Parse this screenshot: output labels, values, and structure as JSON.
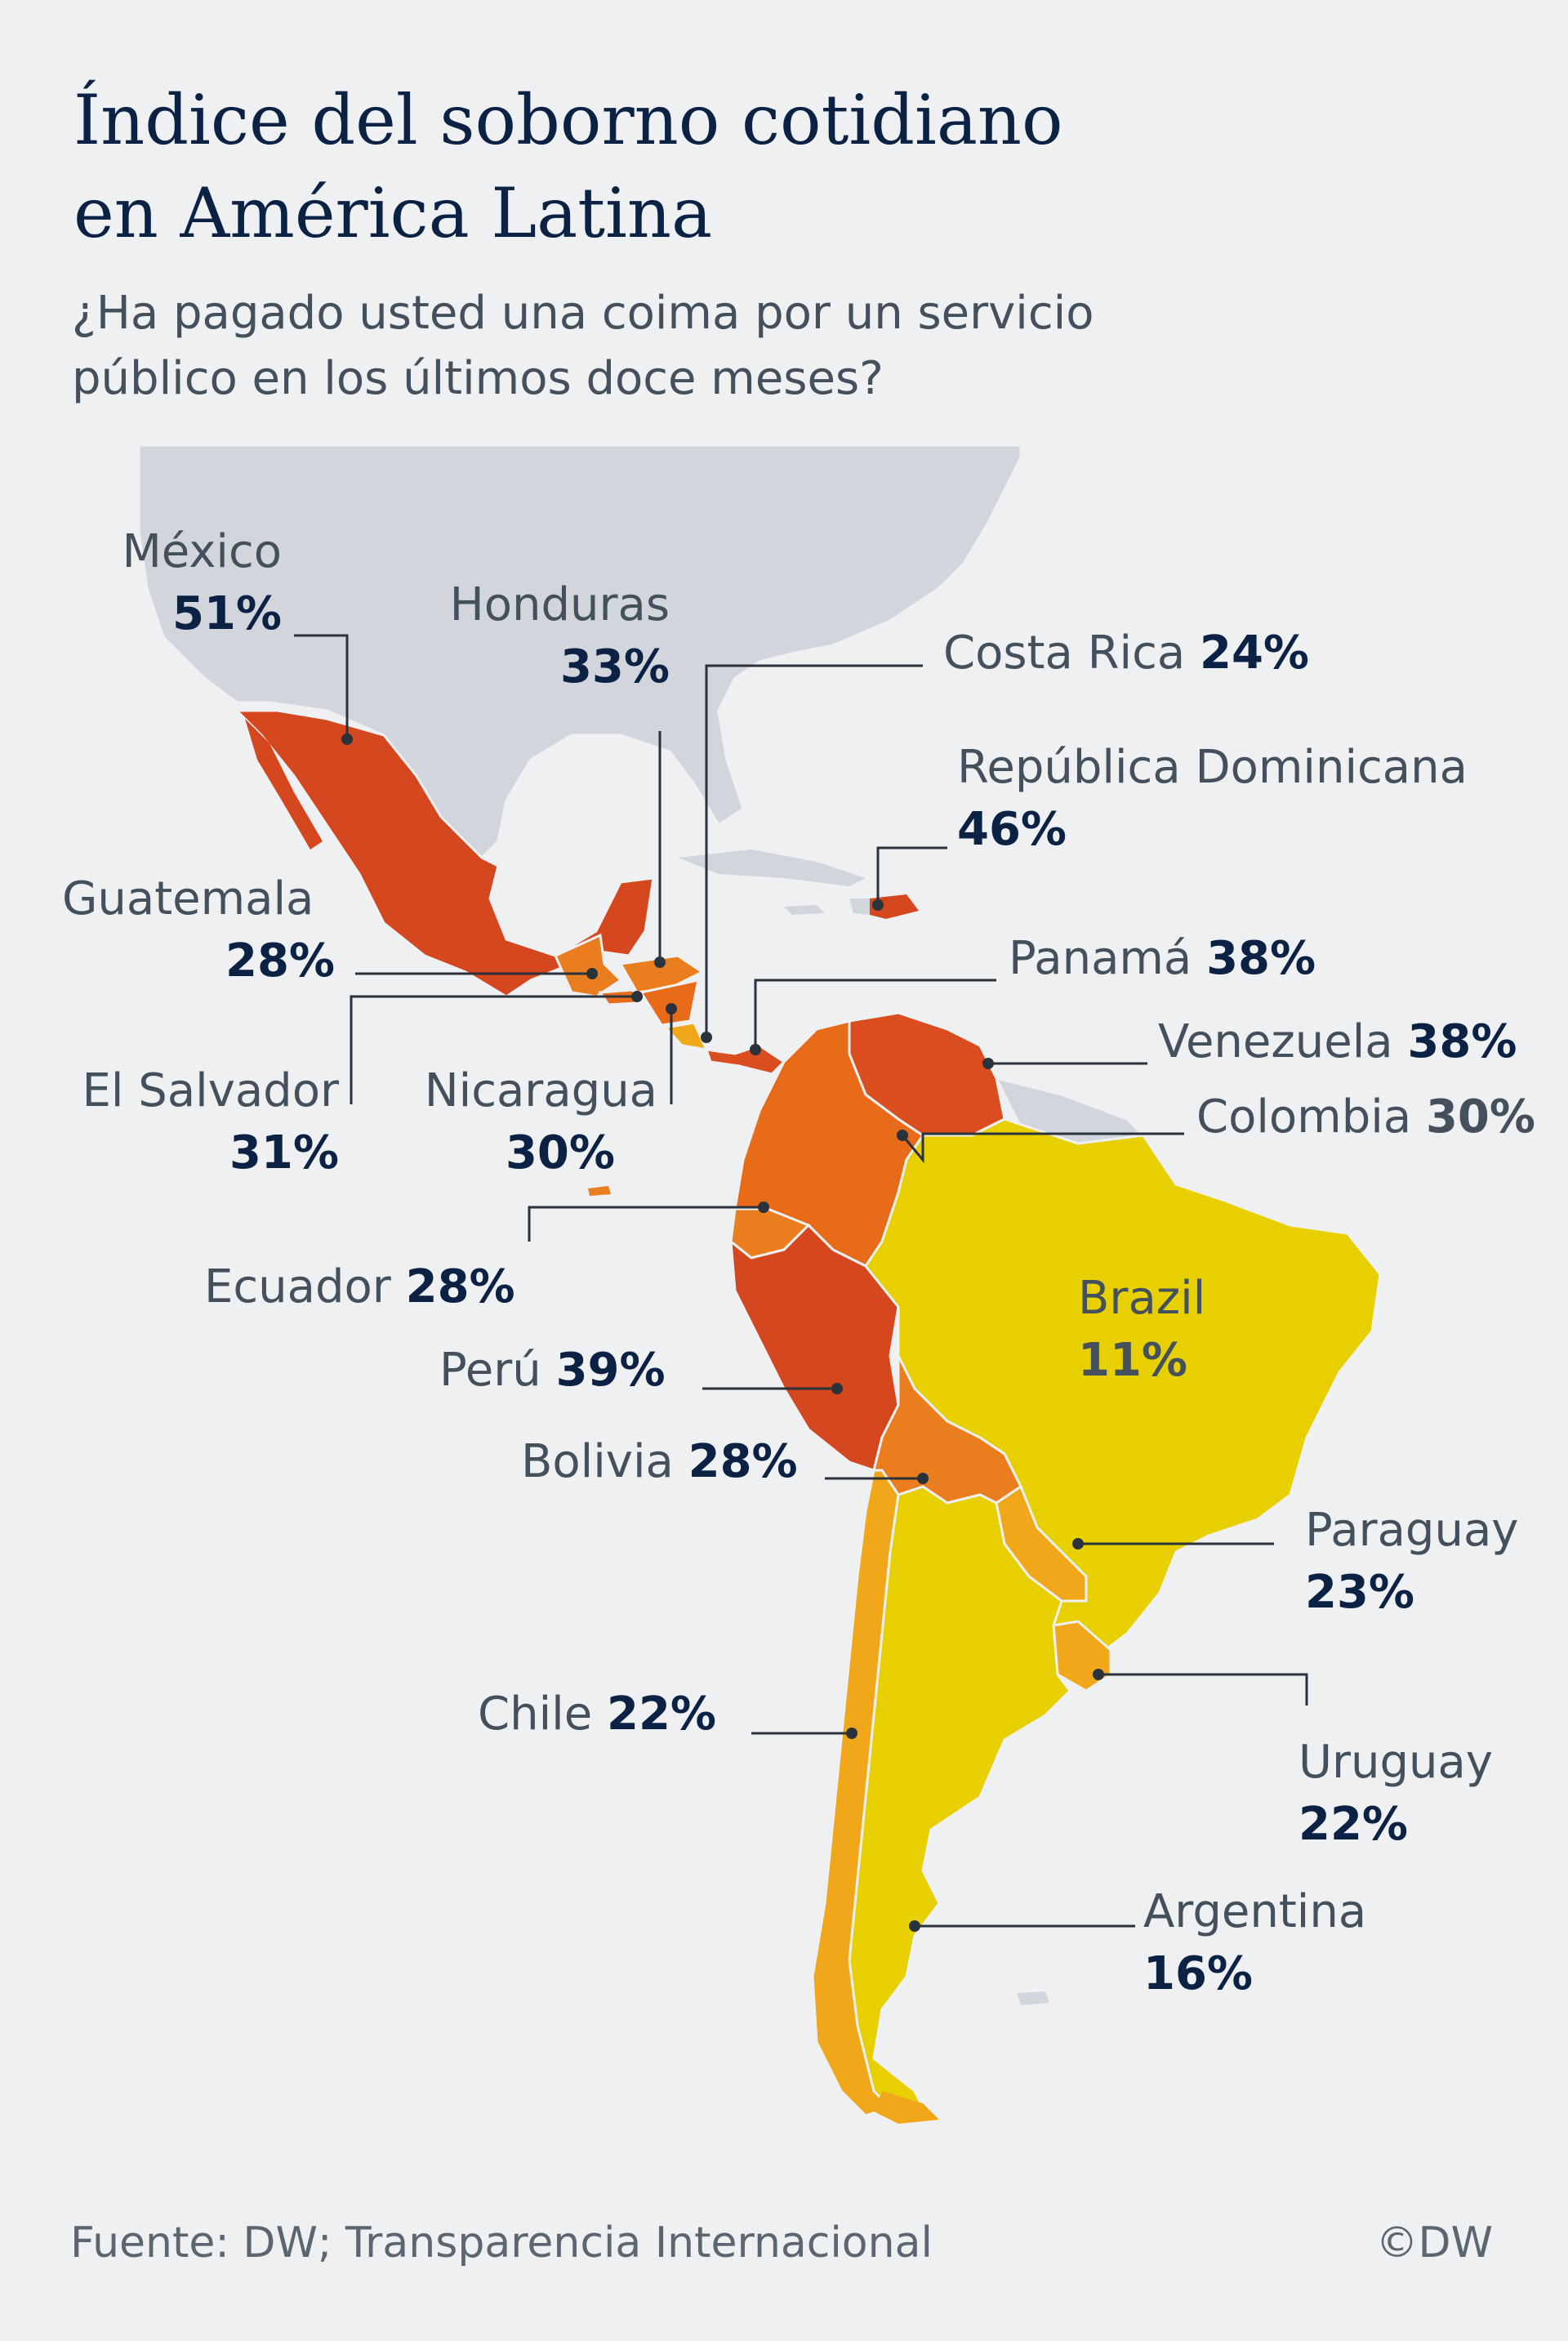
{
  "title_line1": "Índice del soborno cotidiano",
  "title_line2": "en América Latina",
  "subtitle_line1": "¿Ha pagado usted una coima por un servicio",
  "subtitle_line2": "público en los últimos doce meses?",
  "colors": {
    "scale_51": "#d4471f",
    "scale_38": "#d94d1f",
    "scale_30": "#e86b1a",
    "scale_28": "#ea7d1e",
    "scale_24": "#f0a81a",
    "scale_11": "#e8d000",
    "land_other": "#d2d6dc",
    "background": "#eef0f2"
  },
  "countries": [
    {
      "name": "México",
      "value": "51%"
    },
    {
      "name": "Honduras",
      "value": "33%"
    },
    {
      "name": "Costa Rica",
      "value": "24%"
    },
    {
      "name": "República Dominicana",
      "value": "46%"
    },
    {
      "name": "Guatemala",
      "value": "28%"
    },
    {
      "name": "Panamá",
      "value": "38%"
    },
    {
      "name": "Venezuela",
      "value": "38%"
    },
    {
      "name": "El Salvador",
      "value": "31%"
    },
    {
      "name": "Nicaragua",
      "value": "30%"
    },
    {
      "name": "Colombia",
      "value": "30%"
    },
    {
      "name": "Ecuador",
      "value": "28%"
    },
    {
      "name": "Brazil",
      "value": "11%"
    },
    {
      "name": "Perú",
      "value": "39%"
    },
    {
      "name": "Bolivia",
      "value": "28%"
    },
    {
      "name": "Paraguay",
      "value": "23%"
    },
    {
      "name": "Chile",
      "value": "22%"
    },
    {
      "name": "Uruguay",
      "value": "22%"
    },
    {
      "name": "Argentina",
      "value": "16%"
    }
  ],
  "footer": "Fuente: DW; Transparencia Internacional",
  "copyright": "©DW"
}
